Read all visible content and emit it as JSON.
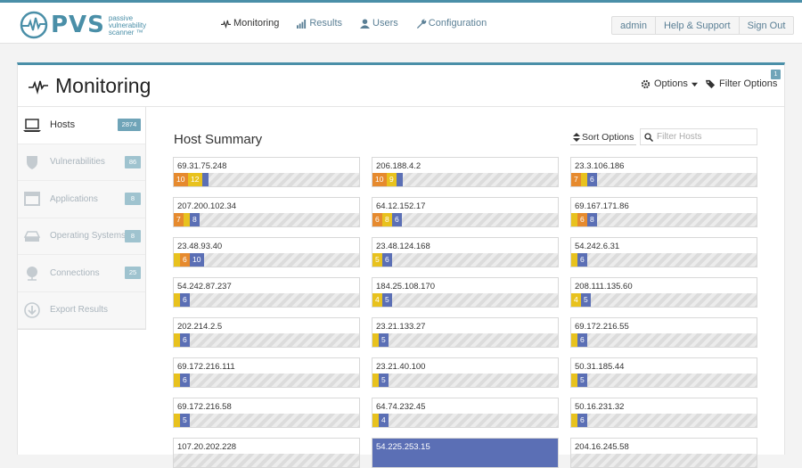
{
  "logo": {
    "name": "PVS",
    "subtitle": "passive vulnerability scanner ™"
  },
  "nav": [
    {
      "label": "Monitoring",
      "icon": "pulse-icon",
      "active": true
    },
    {
      "label": "Results",
      "icon": "bar-chart-icon",
      "active": false
    },
    {
      "label": "Users",
      "icon": "user-icon",
      "active": false
    },
    {
      "label": "Configuration",
      "icon": "wrench-icon",
      "active": false
    }
  ],
  "user_menu": {
    "user": "admin",
    "help": "Help & Support",
    "signout": "Sign Out"
  },
  "page": {
    "title": "Monitoring",
    "options_label": "Options",
    "filter_label": "Filter Options",
    "filter_count": "1"
  },
  "sidebar": [
    {
      "label": "Hosts",
      "count": "2874",
      "icon": "laptop-icon",
      "active": true
    },
    {
      "label": "Vulnerabilities",
      "count": "86",
      "icon": "shield-icon",
      "active": false
    },
    {
      "label": "Applications",
      "count": "8",
      "icon": "window-icon",
      "active": false
    },
    {
      "label": "Operating Systems",
      "count": "8",
      "icon": "hard-drive-icon",
      "active": false
    },
    {
      "label": "Connections",
      "count": "25",
      "icon": "network-icon",
      "active": false
    },
    {
      "label": "Export Results",
      "count": "",
      "icon": "download-icon",
      "active": false
    }
  ],
  "summary": {
    "title": "Host Summary",
    "sort_label": "Sort Options",
    "filter_placeholder": "Filter Hosts"
  },
  "colors": {
    "orange": "#e68a2e",
    "yellow": "#e8c21e",
    "blue": "#5b6fb5",
    "accent": "#4a8fa8"
  },
  "hosts": [
    {
      "ip": "69.31.75.248",
      "segs": [
        [
          "orange",
          "10"
        ],
        [
          "yellow",
          "12"
        ],
        [
          "blue",
          ""
        ]
      ]
    },
    {
      "ip": "206.188.4.2",
      "segs": [
        [
          "orange",
          "10"
        ],
        [
          "yellow",
          "9"
        ],
        [
          "blue",
          ""
        ]
      ]
    },
    {
      "ip": "23.3.106.186",
      "segs": [
        [
          "orange",
          "7"
        ],
        [
          "yellow",
          ""
        ],
        [
          "blue",
          "6"
        ]
      ]
    },
    {
      "ip": "207.200.102.34",
      "segs": [
        [
          "orange",
          "7"
        ],
        [
          "yellow",
          ""
        ],
        [
          "blue",
          "8"
        ]
      ]
    },
    {
      "ip": "64.12.152.17",
      "segs": [
        [
          "orange",
          "6"
        ],
        [
          "yellow",
          "8"
        ],
        [
          "blue",
          "6"
        ]
      ]
    },
    {
      "ip": "69.167.171.86",
      "segs": [
        [
          "yellow",
          ""
        ],
        [
          "orange",
          "6"
        ],
        [
          "blue",
          "8"
        ]
      ]
    },
    {
      "ip": "23.48.93.40",
      "segs": [
        [
          "yellow",
          ""
        ],
        [
          "orange",
          "6"
        ],
        [
          "blue",
          "10"
        ]
      ]
    },
    {
      "ip": "23.48.124.168",
      "segs": [
        [
          "yellow",
          "5"
        ],
        [
          "blue",
          "6"
        ]
      ]
    },
    {
      "ip": "54.242.6.31",
      "segs": [
        [
          "yellow",
          ""
        ],
        [
          "blue",
          "6"
        ]
      ]
    },
    {
      "ip": "54.242.87.237",
      "segs": [
        [
          "yellow",
          ""
        ],
        [
          "blue",
          "6"
        ]
      ]
    },
    {
      "ip": "184.25.108.170",
      "segs": [
        [
          "yellow",
          "4"
        ],
        [
          "blue",
          "5"
        ]
      ]
    },
    {
      "ip": "208.111.135.60",
      "segs": [
        [
          "yellow",
          "4"
        ],
        [
          "blue",
          "5"
        ]
      ]
    },
    {
      "ip": "202.214.2.5",
      "segs": [
        [
          "yellow",
          ""
        ],
        [
          "blue",
          "6"
        ]
      ]
    },
    {
      "ip": "23.21.133.27",
      "segs": [
        [
          "yellow",
          ""
        ],
        [
          "blue",
          "5"
        ]
      ]
    },
    {
      "ip": "69.172.216.55",
      "segs": [
        [
          "yellow",
          ""
        ],
        [
          "blue",
          "6"
        ]
      ]
    },
    {
      "ip": "69.172.216.111",
      "segs": [
        [
          "yellow",
          ""
        ],
        [
          "blue",
          "6"
        ]
      ]
    },
    {
      "ip": "23.21.40.100",
      "segs": [
        [
          "yellow",
          ""
        ],
        [
          "blue",
          "5"
        ]
      ]
    },
    {
      "ip": "50.31.185.44",
      "segs": [
        [
          "yellow",
          ""
        ],
        [
          "blue",
          "5"
        ]
      ]
    },
    {
      "ip": "69.172.216.58",
      "segs": [
        [
          "yellow",
          ""
        ],
        [
          "blue",
          "5"
        ]
      ]
    },
    {
      "ip": "64.74.232.45",
      "segs": [
        [
          "yellow",
          ""
        ],
        [
          "blue",
          "4"
        ]
      ]
    },
    {
      "ip": "50.16.231.32",
      "segs": [
        [
          "yellow",
          ""
        ],
        [
          "blue",
          "6"
        ]
      ]
    },
    {
      "ip": "107.20.202.228",
      "segs": []
    },
    {
      "ip": "54.225.253.15",
      "segs": [],
      "selected": true
    },
    {
      "ip": "204.16.245.58",
      "segs": []
    }
  ]
}
